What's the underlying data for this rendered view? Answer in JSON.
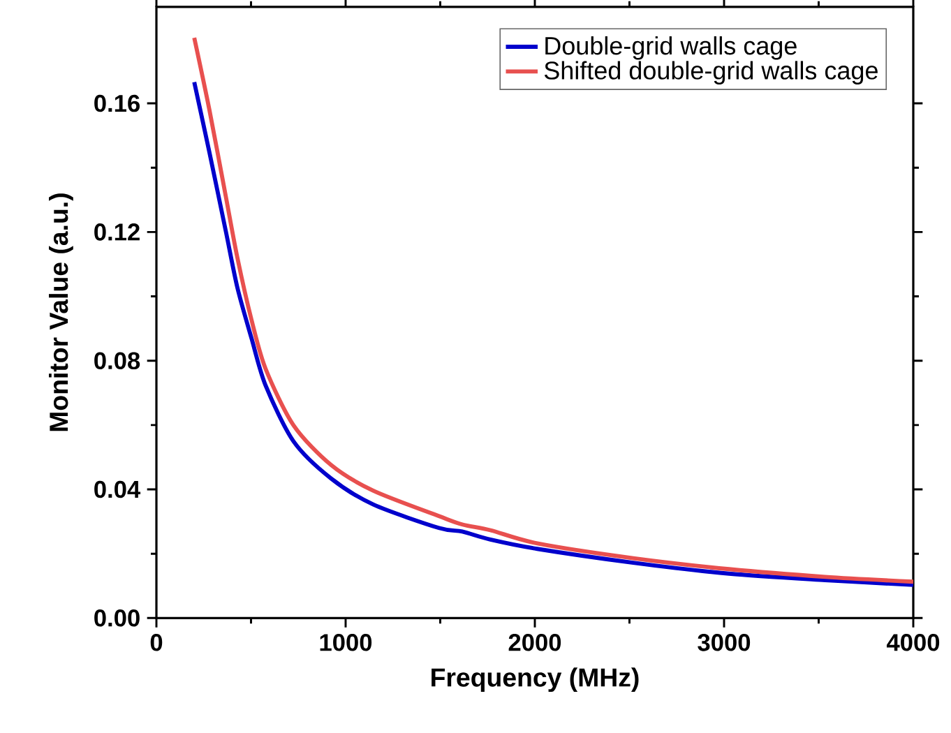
{
  "chart_data": {
    "type": "line",
    "xlabel": "Frequency (MHz)",
    "ylabel": "Monitor Value (a.u.)",
    "xlim": [
      0,
      4000
    ],
    "ylim": [
      0,
      0.19
    ],
    "xticks": [
      0,
      1000,
      2000,
      3000,
      4000
    ],
    "yticks": [
      {
        "value": 0,
        "label": "0.00"
      },
      {
        "value": 0.04,
        "label": "0.04"
      },
      {
        "value": 0.08,
        "label": "0.08"
      },
      {
        "value": 0.12,
        "label": "0.12"
      },
      {
        "value": 0.16,
        "label": "0.16"
      }
    ],
    "legend": "top right",
    "grid": false,
    "marker": "none",
    "line_style": "solid",
    "series": [
      {
        "name": "Double-grid walls cage",
        "color": "#0000cc",
        "x": [
          200,
          280,
          367,
          428,
          503,
          577,
          725,
          923,
          1146,
          1493,
          1616,
          1765,
          2013,
          2520,
          3027,
          3534,
          4000
        ],
        "values": [
          0.1666,
          0.1448,
          0.1202,
          0.1027,
          0.0869,
          0.0723,
          0.0549,
          0.0434,
          0.0353,
          0.028,
          0.0269,
          0.0244,
          0.0215,
          0.0172,
          0.0138,
          0.0118,
          0.0103
        ]
      },
      {
        "name": "Shifted double-grid walls cage",
        "color": "#e8504f",
        "x": [
          200,
          280,
          367,
          428,
          503,
          577,
          725,
          923,
          1146,
          1493,
          1616,
          1765,
          2013,
          2520,
          3027,
          3534,
          4000
        ],
        "values": [
          0.1804,
          0.158,
          0.131,
          0.112,
          0.0926,
          0.0775,
          0.0599,
          0.0476,
          0.0396,
          0.0317,
          0.0291,
          0.0273,
          0.0232,
          0.0186,
          0.0152,
          0.0128,
          0.0113
        ]
      }
    ]
  }
}
